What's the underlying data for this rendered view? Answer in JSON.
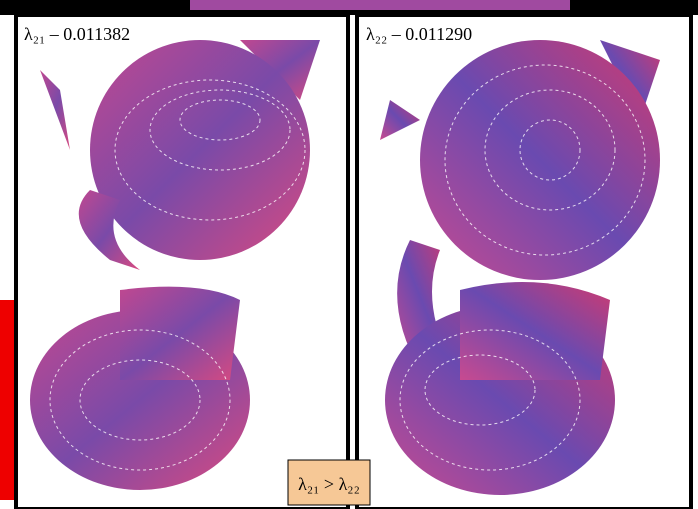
{
  "panels": [
    {
      "label": "λ₂₁ – 0.011382"
    },
    {
      "label": "λ₂₂ – 0.011290"
    }
  ],
  "comparison": "λ₂₁ > λ₂₂"
}
